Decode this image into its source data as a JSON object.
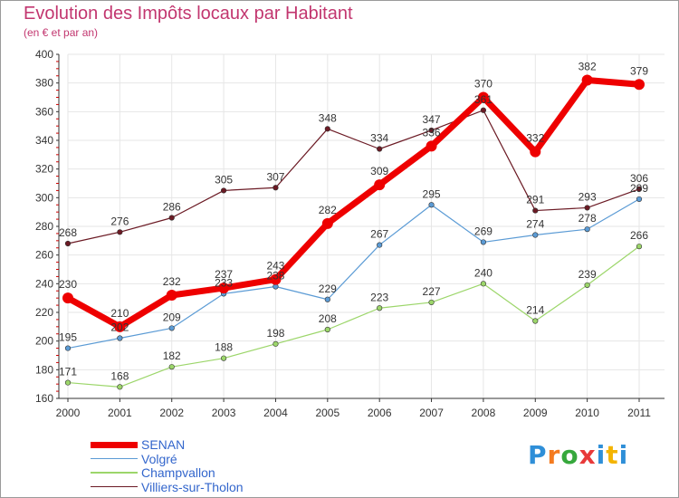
{
  "header": {
    "title": "Evolution des Impôts locaux par Habitant",
    "subtitle": "(en € et par an)"
  },
  "colors": {
    "title": "#c2366f",
    "grid": "#e6e6e6",
    "axis": "#333333",
    "tick_red": "#cc0000"
  },
  "logo": {
    "letters": [
      "P",
      "r",
      "o",
      "x",
      "i",
      "t",
      "i"
    ],
    "colors": [
      "#2f8fd8",
      "#f47b20",
      "#36a83c",
      "#e83a3a",
      "#2f8fd8",
      "#f4b400",
      "#2f8fd8"
    ]
  },
  "chart_data": {
    "type": "line",
    "x": [
      "2000",
      "2001",
      "2002",
      "2003",
      "2004",
      "2005",
      "2006",
      "2007",
      "2008",
      "2009",
      "2010",
      "2011"
    ],
    "ylim": [
      160,
      400
    ],
    "yticks": [
      160,
      180,
      200,
      220,
      240,
      260,
      280,
      300,
      320,
      340,
      360,
      380,
      400
    ],
    "grid": true,
    "legend_position": "bottom-left",
    "series": [
      {
        "name": "Villiers-sur-Tholon",
        "color": "#6b1a24",
        "width": 1.2,
        "marker": 2.8,
        "values": [
          268,
          276,
          286,
          305,
          307,
          348,
          334,
          347,
          361,
          291,
          293,
          306
        ],
        "labels": [
          "268",
          "276",
          "286",
          "305",
          "307",
          "348",
          "334",
          "347",
          "361",
          "291",
          "293",
          "306"
        ]
      },
      {
        "name": "Volgré",
        "color": "#5b9bd5",
        "width": 1.2,
        "marker": 2.8,
        "values": [
          195,
          202,
          209,
          233,
          238,
          229,
          267,
          295,
          269,
          274,
          278,
          299
        ],
        "labels": [
          "195",
          "202",
          "209",
          "233",
          "238",
          "229",
          "267",
          "295",
          "269",
          "274",
          "278",
          "299"
        ]
      },
      {
        "name": "Champvallon",
        "color": "#9cd66a",
        "width": 1.2,
        "marker": 2.8,
        "values": [
          171,
          168,
          182,
          188,
          198,
          208,
          223,
          227,
          240,
          214,
          239,
          266
        ],
        "labels": [
          "171",
          "168",
          "182",
          "188",
          "198",
          "208",
          "223",
          "227",
          "240",
          "214",
          "239",
          "266"
        ]
      },
      {
        "name": "SENAN",
        "color": "#ee0000",
        "width": 7,
        "marker": 6,
        "values": [
          230,
          210,
          232,
          237,
          243,
          282,
          309,
          336,
          370,
          332,
          382,
          379
        ],
        "labels": [
          "230",
          "210",
          "232",
          "237",
          "243",
          "282",
          "309",
          "336",
          "370",
          "332",
          "382",
          "379"
        ]
      }
    ],
    "legend": [
      {
        "name": "SENAN",
        "color": "#ee0000",
        "width": 7
      },
      {
        "name": "Volgré",
        "color": "#5b9bd5",
        "width": 1.2
      },
      {
        "name": "Champvallon",
        "color": "#9cd66a",
        "width": 1.2
      },
      {
        "name": "Villiers-sur-Tholon",
        "color": "#6b1a24",
        "width": 1.2
      }
    ]
  }
}
